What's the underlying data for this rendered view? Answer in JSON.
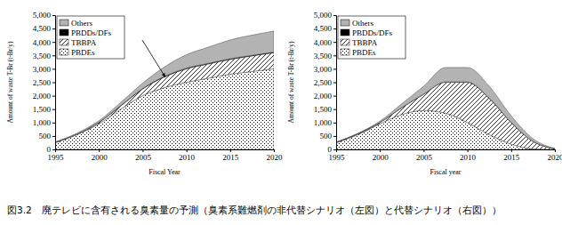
{
  "chart_data": [
    {
      "type": "area",
      "stacked": true,
      "legend": "top-left",
      "grid": false,
      "x_label": "Fiscal Year",
      "y_label": "Amount of waste T-Br (t-Br/y)",
      "x": [
        1995,
        1997.5,
        2000,
        2002.5,
        2005,
        2007.5,
        2010,
        2012.5,
        2015,
        2017.5,
        2020
      ],
      "xlim": [
        1995,
        2020
      ],
      "xticks": [
        1995,
        2000,
        2005,
        2010,
        2015,
        2020
      ],
      "ylim": [
        0,
        5000
      ],
      "yticks": [
        0,
        500,
        {
          "value": 1000,
          "label": "1,000"
        },
        {
          "value": 1500,
          "label": "1,500"
        },
        {
          "value": 2000,
          "label": "2,000"
        },
        {
          "value": 2500,
          "label": "2,500"
        },
        {
          "value": 3000,
          "label": "3,000"
        },
        {
          "value": 3500,
          "label": "3,500"
        },
        {
          "value": 4000,
          "label": "4,000"
        },
        {
          "value": 4500,
          "label": "4,500"
        },
        {
          "value": 5000,
          "label": "5,000"
        }
      ],
      "series": [
        {
          "name": "PBDEs",
          "color": "#000000",
          "values": [
            250,
            550,
            950,
            1500,
            2000,
            2300,
            2500,
            2650,
            2800,
            2900,
            3000
          ]
        },
        {
          "name": "TBBPA",
          "color": "#000000",
          "values": [
            10,
            20,
            50,
            120,
            250,
            400,
            500,
            530,
            550,
            580,
            600
          ]
        },
        {
          "name": "PBDDs/DFs",
          "color": "#000000",
          "values": [
            2,
            4,
            6,
            10,
            15,
            20,
            25,
            25,
            25,
            25,
            25
          ]
        },
        {
          "name": "Others",
          "color": "#b3b3b3",
          "values": [
            10,
            30,
            60,
            120,
            200,
            350,
            500,
            600,
            700,
            750,
            780
          ]
        }
      ]
    },
    {
      "type": "area",
      "stacked": true,
      "legend": "top-left",
      "grid": false,
      "x_label": "Fiscal year",
      "y_label": "Amount of waste T-Br (t-Br/y)",
      "x": [
        1995,
        1997.5,
        2000,
        2002.5,
        2005,
        2007.5,
        2010,
        2012.5,
        2015,
        2017.5,
        2020
      ],
      "xlim": [
        1995,
        2020
      ],
      "xticks": [
        1995,
        2000,
        2005,
        2010,
        2015,
        2020
      ],
      "ylim": [
        0,
        5000
      ],
      "yticks": [
        0,
        500,
        {
          "value": 1000,
          "label": "1,000"
        },
        {
          "value": 1500,
          "label": "1,500"
        },
        {
          "value": 2000,
          "label": "2,000"
        },
        {
          "value": 2500,
          "label": "2,500"
        },
        {
          "value": 3000,
          "label": "3,000"
        },
        {
          "value": 3500,
          "label": "3,500"
        },
        {
          "value": 4000,
          "label": "4,000"
        },
        {
          "value": 4500,
          "label": "4,500"
        },
        {
          "value": 5000,
          "label": "5,000"
        }
      ],
      "series": [
        {
          "name": "PBDEs",
          "color": "#000000",
          "values": [
            250,
            550,
            950,
            1300,
            1450,
            1350,
            1000,
            550,
            200,
            20,
            0
          ]
        },
        {
          "name": "TBBPA",
          "color": "#000000",
          "values": [
            10,
            30,
            50,
            250,
            600,
            1150,
            1500,
            1350,
            800,
            280,
            20
          ]
        },
        {
          "name": "PBDDs/DFs",
          "color": "#000000",
          "values": [
            2,
            4,
            6,
            8,
            10,
            12,
            12,
            10,
            6,
            3,
            1
          ]
        },
        {
          "name": "Others",
          "color": "#b3b3b3",
          "values": [
            8,
            16,
            44,
            142,
            290,
            538,
            538,
            440,
            244,
            97,
            9
          ]
        }
      ]
    }
  ],
  "caption": "図3.2　廃テレビに含有される臭素量の予測（臭素系難燃剤の非代替シナリオ（左図）と代替シナリオ（右図））"
}
